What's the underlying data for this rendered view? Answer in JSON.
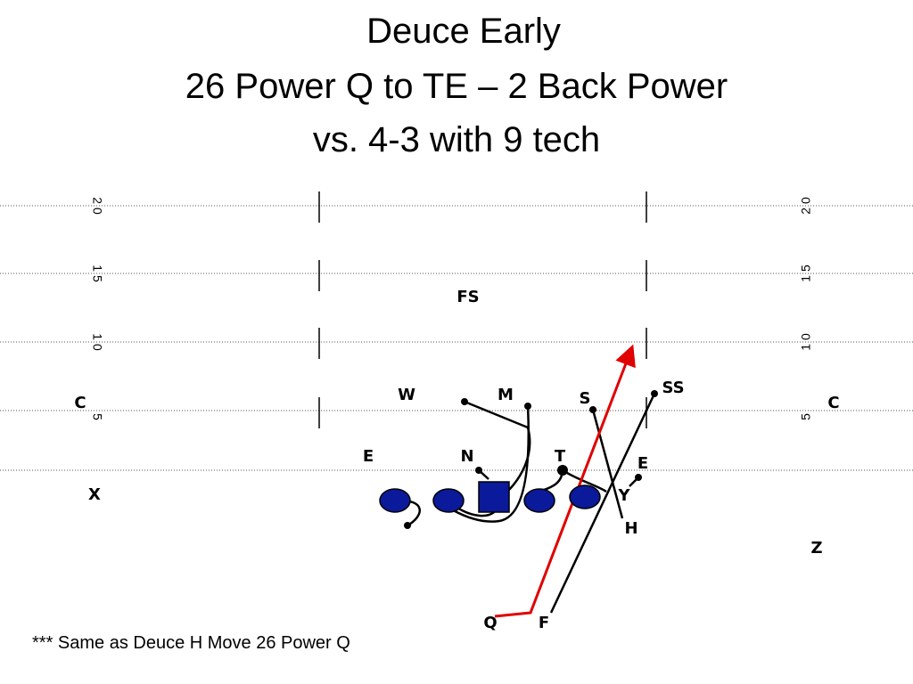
{
  "header": {
    "title_lines": [
      "Deuce Early",
      "26 Power Q to TE – 2 Back Power",
      "vs.  4-3 with 9 tech"
    ]
  },
  "field": {
    "yard_numbers": [
      "2 0",
      "1 5",
      "1 0",
      "5"
    ]
  },
  "defense": {
    "labels": [
      "FS",
      "W",
      "M",
      "S",
      "SS",
      "E",
      "N",
      "T",
      "C",
      "C"
    ]
  },
  "offense": {
    "labels": [
      "E",
      "Y",
      "H",
      "X",
      "Z",
      "Q",
      "F"
    ]
  },
  "footnote": "*** Same as Deuce H Move 26 Power Q"
}
